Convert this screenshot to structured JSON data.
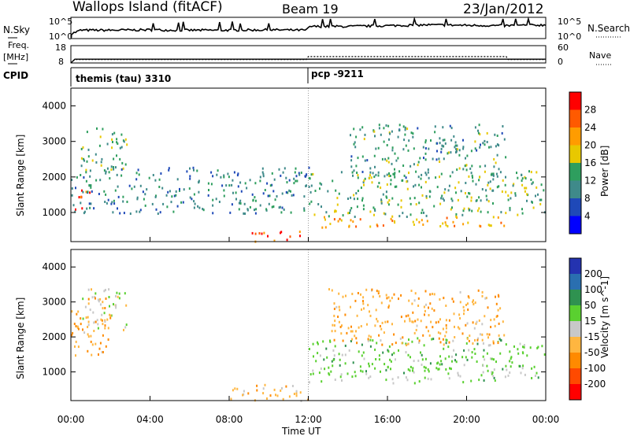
{
  "header": {
    "station": "Wallops Island (fitACF)",
    "beam": "Beam 19",
    "date": "23/Jan/2012"
  },
  "noise_panel": {
    "left_label": "N.Sky",
    "right_label": "N.Search",
    "left_ticks": [
      "10^5",
      "10^0"
    ],
    "right_ticks": [
      "10^5",
      "10^0"
    ]
  },
  "freq_panel": {
    "left_label_1": "Freq.",
    "left_label_2": "[MHz]",
    "right_label": "Nave",
    "left_ticks": [
      "18",
      "8"
    ],
    "right_ticks": [
      "60",
      "0"
    ]
  },
  "cpid_panel": {
    "label": "CPID",
    "modes": [
      {
        "name": "themis (tau) 3310",
        "start": "00:00"
      },
      {
        "name": "pcp -9211",
        "start": "12:00"
      }
    ]
  },
  "power_panel": {
    "ylabel": "Slant Range [km]",
    "colorbar_label": "Power [dB]",
    "colorbar_ticks": [
      "28",
      "24",
      "20",
      "16",
      "12",
      "8",
      "4"
    ],
    "colorbar_colors": [
      "#ff0000",
      "#ff5a00",
      "#ff9c00",
      "#e8c800",
      "#2e9e5e",
      "#3f8a8a",
      "#1f49b8",
      "#0000ff"
    ]
  },
  "velocity_panel": {
    "ylabel": "Slant Range [km]",
    "colorbar_label": "Velocity [m s^-1]",
    "colorbar_ticks": [
      "200",
      "100",
      "50",
      "15",
      "-15",
      "-50",
      "-100",
      "-200"
    ],
    "colorbar_colors": [
      "#2433b0",
      "#2a6fb0",
      "#2f9250",
      "#5ad030",
      "#c8c8c8",
      "#ffb640",
      "#ff8a00",
      "#ff4a00",
      "#ff0000"
    ]
  },
  "xaxis": {
    "label": "Time UT",
    "ticks": [
      "00:00",
      "04:00",
      "08:00",
      "12:00",
      "16:00",
      "20:00",
      "00:00"
    ]
  },
  "chart_data": [
    {
      "type": "line",
      "title": "N.Sky / N.Search",
      "x_unit": "hours UT",
      "x": [
        0,
        0.5,
        2,
        4,
        5.5,
        8,
        10,
        11.9,
        12.1,
        14,
        16,
        18,
        20,
        22,
        24
      ],
      "series": [
        {
          "name": "N.Sky",
          "values_log10": [
            1.0,
            2.0,
            2.0,
            2.1,
            2.0,
            2.0,
            2.1,
            2.0,
            3.0,
            3.0,
            3.2,
            3.4,
            3.3,
            3.2,
            3.4
          ]
        }
      ],
      "ylim": [
        0,
        5
      ]
    },
    {
      "type": "line",
      "title": "Freq. / Nave",
      "x": [
        0,
        0.2,
        11.9,
        12.0,
        22.0,
        22.1,
        24
      ],
      "series": [
        {
          "name": "Freq. [MHz]",
          "values": [
            8,
            10.2,
            10.2,
            10.2,
            10.2,
            10.2,
            10.2
          ]
        },
        {
          "name": "Nave",
          "values": [
            0,
            12,
            12,
            22,
            22,
            12,
            12
          ]
        }
      ],
      "freq_ylim": [
        8,
        18
      ],
      "nave_ylim": [
        0,
        60
      ]
    },
    {
      "type": "heatmap",
      "title": "Power [dB]",
      "x_range_hours": [
        0,
        24
      ],
      "y_range_km": [
        180,
        4500
      ],
      "ylabel": "Slant Range [km]",
      "yticks": [
        1000,
        2000,
        3000,
        4000
      ],
      "regions": [
        {
          "t": [
            0.1,
            1.0
          ],
          "r": [
            900,
            1800
          ],
          "db": 26
        },
        {
          "t": [
            0.5,
            2.8
          ],
          "r": [
            2200,
            3400
          ],
          "db": 12
        },
        {
          "t": [
            0,
            12
          ],
          "r": [
            1000,
            2300
          ],
          "db": 8
        },
        {
          "t": [
            9,
            12
          ],
          "r": [
            200,
            500
          ],
          "db": 24
        },
        {
          "t": [
            12,
            22
          ],
          "r": [
            600,
            900
          ],
          "db": 20
        },
        {
          "t": [
            12,
            24
          ],
          "r": [
            900,
            2200
          ],
          "db": 12
        },
        {
          "t": [
            14,
            22
          ],
          "r": [
            2000,
            3500
          ],
          "db": 10
        }
      ]
    },
    {
      "type": "heatmap",
      "title": "Velocity [m s^-1]",
      "x_range_hours": [
        0,
        24
      ],
      "y_range_km": [
        180,
        4500
      ],
      "ylabel": "Slant Range [km]",
      "yticks": [
        1000,
        2000,
        3000,
        4000
      ],
      "regions": [
        {
          "t": [
            0.5,
            2.8
          ],
          "r": [
            2200,
            3400
          ],
          "v": 0
        },
        {
          "t": [
            0,
            2
          ],
          "r": [
            1500,
            3200
          ],
          "v": -40
        },
        {
          "t": [
            12,
            24
          ],
          "r": [
            700,
            2000
          ],
          "v": 30
        },
        {
          "t": [
            13,
            22
          ],
          "r": [
            1800,
            3400
          ],
          "v": -40
        },
        {
          "t": [
            8,
            12
          ],
          "r": [
            200,
            700
          ],
          "v": -30
        }
      ]
    }
  ]
}
